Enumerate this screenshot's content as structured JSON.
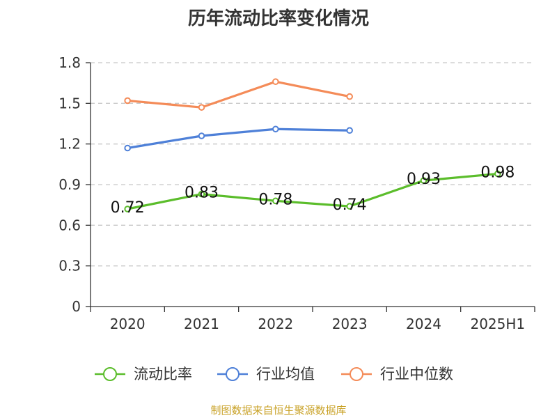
{
  "chart_data": {
    "type": "line",
    "title": "历年流动比率变化情况",
    "categories": [
      "2020",
      "2021",
      "2022",
      "2023",
      "2024",
      "2025H1"
    ],
    "y_ticks": [
      "0",
      "0.3",
      "0.6",
      "0.9",
      "1.2",
      "1.5",
      "1.8"
    ],
    "ylim": [
      0,
      1.8
    ],
    "grid": true,
    "legend_position": "bottom",
    "series": [
      {
        "name": "流动比率",
        "color": "#5bbd2b",
        "values": [
          0.72,
          0.83,
          0.78,
          0.74,
          0.93,
          0.98
        ],
        "labels": [
          "0.72",
          "0.83",
          "0.78",
          "0.74",
          "0.93",
          "0.98"
        ]
      },
      {
        "name": "行业均值",
        "color": "#4e80d8",
        "values": [
          1.17,
          1.26,
          1.31,
          1.3,
          null,
          null
        ]
      },
      {
        "name": "行业中位数",
        "color": "#f48b58",
        "values": [
          1.52,
          1.47,
          1.66,
          1.55,
          null,
          null
        ]
      }
    ]
  },
  "footer": {
    "source": "制图数据来自恒生聚源数据库"
  }
}
